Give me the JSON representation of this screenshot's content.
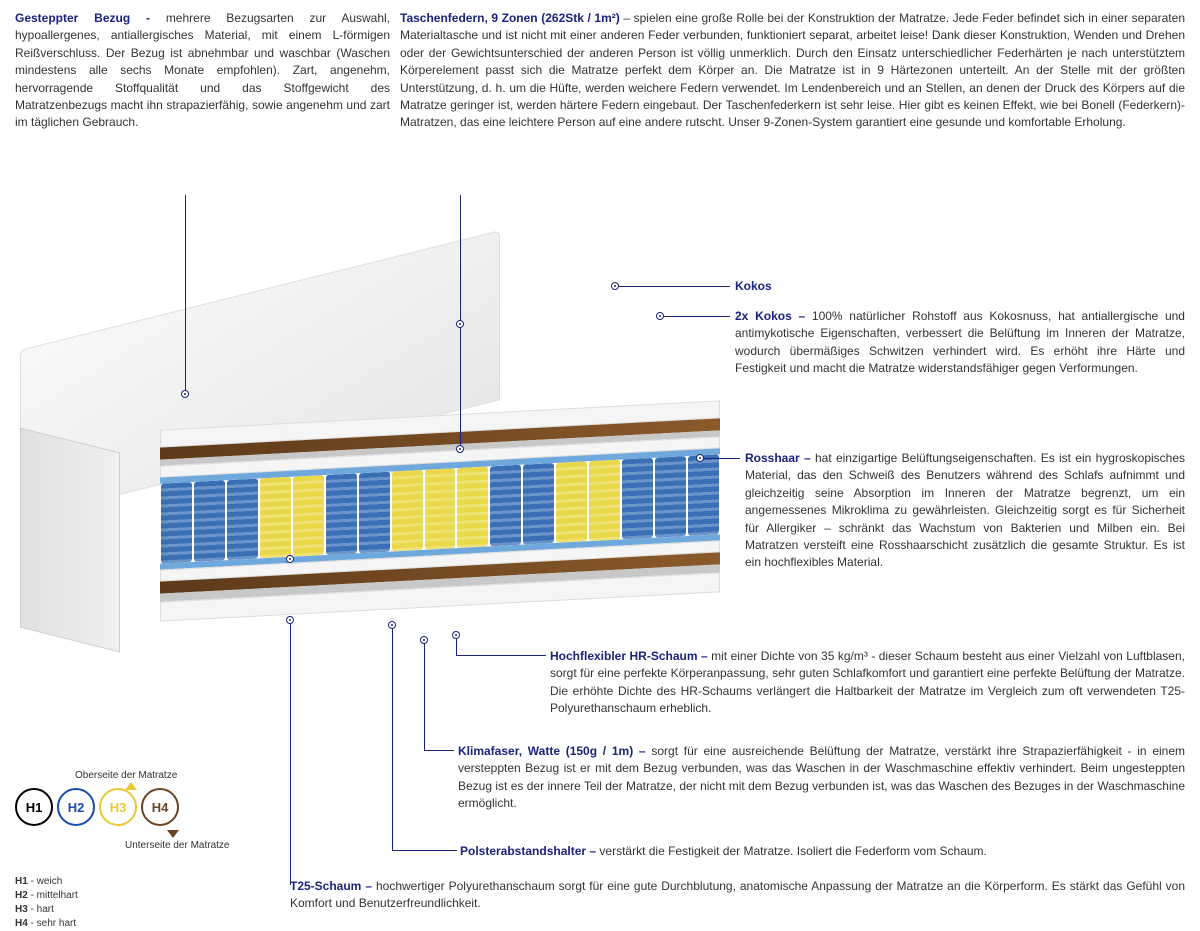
{
  "colors": {
    "title": "#1a237e",
    "text": "#333333",
    "line": "#1a237e",
    "spring_blue": "#3b6fb5",
    "spring_yellow": "#e8d84a",
    "brown": "#6b4423",
    "h1": "#000000",
    "h2": "#1a4db3",
    "h3": "#e8c83a",
    "h4": "#6b4423"
  },
  "top_left": {
    "title": "Gesteppter Bezug -",
    "body": "mehrere Bezugsarten zur Auswahl, hypoallergenes, antiallergisches Material, mit einem L-förmigen Reißverschluss. Der Bezug ist abnehmbar und waschbar (Waschen mindestens alle sechs Monate empfohlen). Zart, angenehm, hervorragende Stoffqualität und das Stoffgewicht des Matratzenbezugs macht ihn strapazierfähig, sowie angenehm und zart im täglichen Gebrauch."
  },
  "top_right": {
    "title": "Taschenfedern, 9 Zonen (262Stk / 1m²)",
    "body": " – spielen eine große Rolle bei der Konstruktion der Matratze. Jede Feder befindet sich in einer separaten Materialtasche und ist nicht mit einer anderen Feder verbunden, funktioniert separat, arbeitet leise! Dank dieser Konstruktion, Wenden und Drehen oder der Gewichtsunterschied der anderen Person ist völlig unmerklich. Durch den Einsatz unterschiedlicher Federhärten je nach unterstütztem Körperelement passt sich die Matratze perfekt dem Körper an. Die Matratze ist in 9 Härtezonen unterteilt. An der Stelle mit der größten Unterstützung, d. h. um die Hüfte, werden weichere Federn verwendet. Im Lendenbereich und an Stellen, an denen der Druck des Körpers auf die Matratze geringer ist, werden härtere Federn eingebaut. Der Taschenfederkern ist sehr leise. Hier gibt es keinen Effekt, wie bei Bonell (Federkern)- Matratzen, das eine leichtere Person auf eine andere rutscht. Unser 9-Zonen-System garantiert eine gesunde und komfortable Erholung."
  },
  "callouts": {
    "kokos_single": {
      "title": "Kokos"
    },
    "kokos": {
      "title": "2x Kokos –",
      "body": "100% natürlicher Rohstoff aus Kokosnuss, hat antiallergische und antimykotische Eigenschaften, verbessert die Belüftung im Inneren der Matratze, wodurch übermäßiges Schwitzen verhindert wird. Es erhöht ihre Härte und Festigkeit und macht die Matratze widerstandsfähiger gegen Verformungen."
    },
    "rosshaar": {
      "title": "Rosshaar –",
      "body": "hat einzigartige Belüftungseigenschaften. Es ist ein hygroskopisches Material, das den Schweiß des Benutzers während des Schlafs aufnimmt und gleichzeitig seine Absorption im Inneren der Matratze begrenzt, um ein angemessenes Mikroklima zu gewährleisten. Gleichzeitig sorgt es für Sicherheit für Allergiker – schränkt das Wachstum von Bakterien und Milben ein. Bei Matratzen versteift eine Rosshaarschicht zusätzlich die gesamte Struktur. Es ist ein hochflexibles Material."
    },
    "hrschaum": {
      "title": "Hochflexibler HR-Schaum –",
      "body": "mit einer Dichte von 35 kg/m³ - dieser Schaum besteht aus einer Vielzahl von Luftblasen, sorgt für eine perfekte Körperanpassung, sehr guten Schlafkomfort und garantiert eine perfekte Belüftung der Matratze. Die erhöhte Dichte des HR-Schaums verlängert die Haltbarkeit der Matratze im Vergleich zum oft verwendeten T25-Polyurethanschaum erheblich."
    },
    "klimafaser": {
      "title": "Klimafaser, Watte (150g / 1m) –",
      "body": "sorgt für eine ausreichende Belüftung der Matratze, verstärkt ihre Strapazierfähigkeit - in einem versteppten Bezug ist er mit dem Bezug verbunden, was das Waschen in der Waschmaschine effektiv verhindert. Beim ungesteppten Bezug ist es der innere Teil der Matratze, der nicht mit dem Bezug verbunden ist, was das Waschen des Bezuges in der Waschmaschine ermöglicht."
    },
    "polster": {
      "title": "Polsterabstandshalter –",
      "body": "verstärkt die Festigkeit der Matratze. Isoliert die Federform vom Schaum."
    },
    "t25": {
      "title": "T25-Schaum –",
      "body": "hochwertiger Polyurethanschaum sorgt für eine gute Durchblutung, anatomische Anpassung der Matratze an die Körperform. Es stärkt das Gefühl von Komfort und Benutzerfreundlichkeit."
    }
  },
  "legend": {
    "top_label": "Oberseite der Matratze",
    "bottom_label": "Unterseite der Matratze",
    "items": [
      {
        "code": "H1",
        "desc": "weich",
        "color": "#000000"
      },
      {
        "code": "H2",
        "desc": "mittelhart",
        "color": "#1a4db3"
      },
      {
        "code": "H3",
        "desc": "hart",
        "color": "#e8c83a"
      },
      {
        "code": "H4",
        "desc": "sehr hart",
        "color": "#6b4423"
      }
    ]
  },
  "spring_pattern": [
    "b",
    "b",
    "b",
    "y",
    "y",
    "b",
    "b",
    "y",
    "y",
    "y",
    "b",
    "b",
    "y",
    "y",
    "b",
    "b",
    "b"
  ]
}
